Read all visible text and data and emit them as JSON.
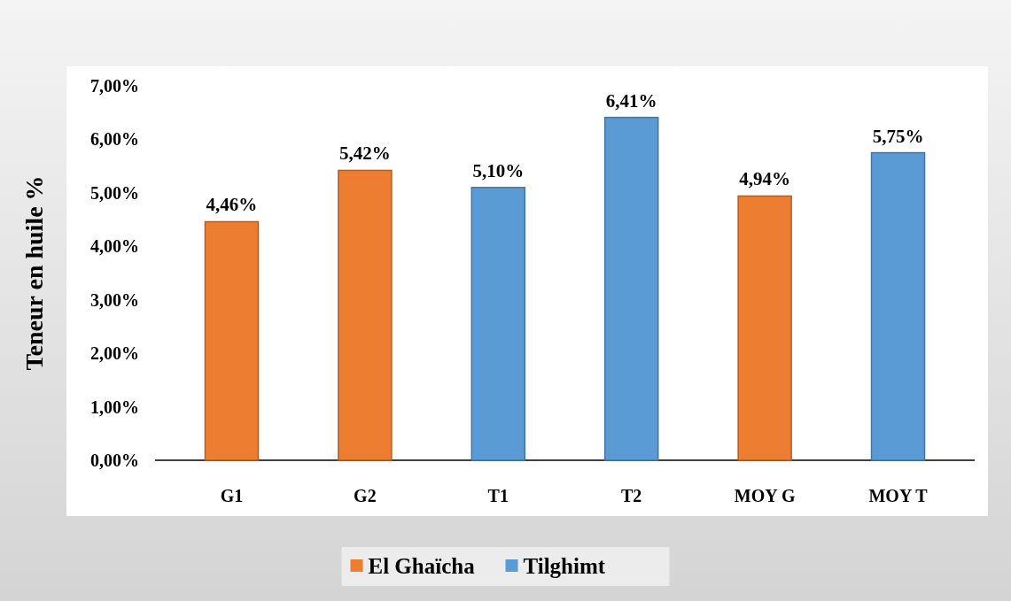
{
  "chart_data": {
    "type": "bar",
    "ylabel": "Teneur en huile %",
    "categories": [
      "G1",
      "G2",
      "T1",
      "T2",
      "MOY G",
      "MOY T"
    ],
    "series": [
      {
        "name": "El Ghaïcha",
        "color": "#ed7d31",
        "values": [
          4.46,
          5.42,
          null,
          null,
          4.94,
          null
        ],
        "value_labels": [
          "4,46%",
          "5,42%",
          null,
          null,
          "4,94%",
          null
        ]
      },
      {
        "name": "Tilghimt",
        "color": "#5b9bd5",
        "values": [
          null,
          null,
          5.1,
          6.41,
          null,
          5.75
        ],
        "value_labels": [
          null,
          null,
          "5,10%",
          "6,41%",
          null,
          "5,75%"
        ]
      }
    ],
    "ylim": [
      0,
      7
    ],
    "yticks": [
      {
        "value": 0,
        "label": "0,00%"
      },
      {
        "value": 1,
        "label": "1,00%"
      },
      {
        "value": 2,
        "label": "2,00%"
      },
      {
        "value": 3,
        "label": "3,00%"
      },
      {
        "value": 4,
        "label": "4,00%"
      },
      {
        "value": 5,
        "label": "5,00%"
      },
      {
        "value": 6,
        "label": "6,00%"
      },
      {
        "value": 7,
        "label": "7,00%"
      }
    ],
    "grid": false,
    "legend": "bottom"
  }
}
